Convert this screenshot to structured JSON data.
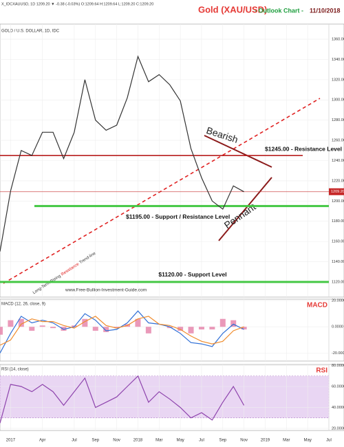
{
  "header": {
    "symbol_line": "X_IDCXAUUSD, 1D 1209.20 ▼ -0.38 (-0.03%) O:1209.64 H:1209.64 L:1209.20 C:1209.20",
    "title": "Gold (XAU/USD)",
    "title_mid": "- Outlook Chart -",
    "title_date": "11/10/2018"
  },
  "chart_data": [
    {
      "type": "line",
      "title": "GOLD / U.S. DOLLAR, 1D, IDC",
      "x": [
        "2016-12",
        "2017-01",
        "2017-02",
        "2017-03",
        "2017-04",
        "2017-05",
        "2017-06",
        "2017-07",
        "2017-08",
        "2017-09",
        "2017-10",
        "2017-11",
        "2017-12",
        "2018-01",
        "2018-02",
        "2018-03",
        "2018-04",
        "2018-05",
        "2018-06",
        "2018-07",
        "2018-08",
        "2018-09",
        "2018-10",
        "2018-11"
      ],
      "series": [
        {
          "name": "close",
          "color": "#333333",
          "values": [
            1150,
            1210,
            1250,
            1245,
            1268,
            1268,
            1242,
            1268,
            1320,
            1280,
            1270,
            1275,
            1302,
            1343,
            1318,
            1325,
            1315,
            1299,
            1252,
            1223,
            1200,
            1192,
            1215,
            1209.2
          ]
        }
      ],
      "xlim": [
        "2016-12",
        "2019-07"
      ],
      "ylim": [
        1105,
        1375
      ],
      "yticks": [
        {
          "value": 1120,
          "label": "1120.00"
        },
        {
          "value": 1140,
          "label": "1140.00"
        },
        {
          "value": 1160,
          "label": "1160.00"
        },
        {
          "value": 1180,
          "label": "1180.00"
        },
        {
          "value": 1200,
          "label": "1200.00"
        },
        {
          "value": 1220,
          "label": "1220.00"
        },
        {
          "value": 1240,
          "label": "1240.00"
        },
        {
          "value": 1260,
          "label": "1260.00"
        },
        {
          "value": 1280,
          "label": "1280.00"
        },
        {
          "value": 1300,
          "label": "1300.00"
        },
        {
          "value": 1320,
          "label": "1320.00"
        },
        {
          "value": 1340,
          "label": "1340.00"
        },
        {
          "value": 1360,
          "label": "1360.00"
        }
      ],
      "last_price": {
        "value": 1209.2,
        "label": "1209.20",
        "color": "#c62828"
      },
      "levels": [
        {
          "value": 1245,
          "label": "$1245.00 - Resistance Level",
          "color": "#b71c1c"
        },
        {
          "value": 1195,
          "label": "$1195.00 - Support / Resistance Level",
          "color": "#43c743"
        },
        {
          "value": 1120,
          "label": "$1120.00 - Support Level",
          "color": "#43c743"
        }
      ],
      "annotations": {
        "bearish": "Bearish",
        "pennant": "Pennant",
        "website": "www.Free-Bullion-Investment-Guide.com",
        "trend_line": [
          "Long-Term Rising",
          "Resistance",
          "Trend-line"
        ]
      },
      "grid": true
    },
    {
      "type": "line",
      "title": "MACD (12, 26, close, 9)",
      "label": "MACD",
      "x": [
        "2016-12",
        "2017-01",
        "2017-02",
        "2017-03",
        "2017-04",
        "2017-05",
        "2017-06",
        "2017-07",
        "2017-08",
        "2017-09",
        "2017-10",
        "2017-11",
        "2017-12",
        "2018-01",
        "2018-02",
        "2018-03",
        "2018-04",
        "2018-05",
        "2018-06",
        "2018-07",
        "2018-08",
        "2018-09",
        "2018-10",
        "2018-11"
      ],
      "series": [
        {
          "name": "histogram",
          "style": "bar",
          "color": "#e57fa7",
          "values": [
            -6,
            5,
            6,
            -3,
            1,
            -1,
            -3,
            1,
            6,
            -3,
            -4,
            -1,
            2,
            6,
            -5,
            0,
            -1,
            -3,
            -5,
            -2,
            -2,
            6,
            5,
            -2
          ]
        },
        {
          "name": "macd",
          "color": "#2f6fd6",
          "values": [
            -20,
            -5,
            8,
            3,
            5,
            3,
            -2,
            0,
            10,
            5,
            -3,
            -2,
            3,
            12,
            3,
            2,
            0,
            -5,
            -12,
            -13,
            -15,
            -5,
            2,
            -2
          ]
        },
        {
          "name": "signal",
          "color": "#f08c2c",
          "values": [
            -14,
            -10,
            2,
            6,
            4,
            4,
            1,
            -1,
            4,
            8,
            1,
            -1,
            1,
            6,
            8,
            2,
            1,
            -2,
            -7,
            -11,
            -13,
            -11,
            -3,
            0
          ]
        }
      ],
      "xlim": [
        "2016-12",
        "2019-07"
      ],
      "ylim": [
        -26,
        21
      ],
      "yticks": [
        {
          "value": -20,
          "label": "-20.0000"
        },
        {
          "value": 0,
          "label": "0.0000"
        },
        {
          "value": 20,
          "label": "20.0000"
        }
      ]
    },
    {
      "type": "line",
      "title": "RSI (14, close)",
      "label": "RSI",
      "x": [
        "2016-12",
        "2017-01",
        "2017-02",
        "2017-03",
        "2017-04",
        "2017-05",
        "2017-06",
        "2017-07",
        "2017-08",
        "2017-09",
        "2017-10",
        "2017-11",
        "2017-12",
        "2018-01",
        "2018-02",
        "2018-03",
        "2018-04",
        "2018-05",
        "2018-06",
        "2018-07",
        "2018-08",
        "2018-09",
        "2018-10",
        "2018-11"
      ],
      "series": [
        {
          "name": "rsi",
          "color": "#8e44ad",
          "values": [
            25,
            62,
            60,
            55,
            62,
            55,
            42,
            55,
            68,
            40,
            45,
            50,
            60,
            70,
            45,
            55,
            48,
            40,
            30,
            35,
            28,
            45,
            60,
            42
          ]
        }
      ],
      "band": [
        30,
        70
      ],
      "xlim": [
        "2016-12",
        "2019-07"
      ],
      "ylim": [
        18,
        81
      ],
      "yticks": [
        {
          "value": 20,
          "label": "20.0000"
        },
        {
          "value": 40,
          "label": "40.0000"
        },
        {
          "value": 60,
          "label": "60.0000"
        },
        {
          "value": 80,
          "label": "80.0000"
        }
      ],
      "xticks": [
        {
          "value": "2017-01",
          "label": "2017"
        },
        {
          "value": "2017-04",
          "label": "Apr"
        },
        {
          "value": "2017-07",
          "label": "Jul"
        },
        {
          "value": "2017-09",
          "label": "Sep"
        },
        {
          "value": "2017-11",
          "label": "Nov"
        },
        {
          "value": "2018-01",
          "label": "2018"
        },
        {
          "value": "2018-03",
          "label": "Mar"
        },
        {
          "value": "2018-05",
          "label": "May"
        },
        {
          "value": "2018-07",
          "label": "Jul"
        },
        {
          "value": "2018-09",
          "label": "Sep"
        },
        {
          "value": "2018-11",
          "label": "Nov"
        },
        {
          "value": "2019-01",
          "label": "2019"
        },
        {
          "value": "2019-03",
          "label": "Mar"
        },
        {
          "value": "2019-05",
          "label": "May"
        },
        {
          "value": "2019-07",
          "label": "Jul"
        }
      ]
    }
  ]
}
